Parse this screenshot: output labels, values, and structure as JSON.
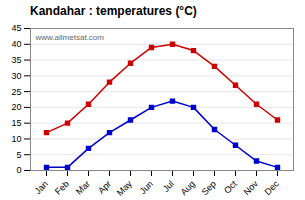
{
  "chart_data": {
    "type": "line",
    "title": "Kandahar : temperatures (°C)",
    "categories": [
      "Jan",
      "Feb",
      "Mar",
      "Apr",
      "May",
      "Jun",
      "Jul",
      "Aug",
      "Sep",
      "Oct",
      "Nov",
      "Dec"
    ],
    "series": [
      {
        "color": "#cc0000",
        "marker": "square",
        "values": [
          12,
          15,
          21,
          28,
          34,
          39,
          40,
          38,
          33,
          27,
          21,
          16
        ]
      },
      {
        "color": "#0000cc",
        "marker": "square",
        "values": [
          1,
          1,
          7,
          12,
          16,
          20,
          22,
          20,
          13,
          8,
          3,
          1
        ]
      }
    ],
    "ylim": [
      0,
      45
    ],
    "yticks": [
      0,
      5,
      10,
      15,
      20,
      25,
      30,
      35,
      40,
      45
    ],
    "grid": true,
    "annotations": [
      "www.allmetsat.com"
    ]
  }
}
